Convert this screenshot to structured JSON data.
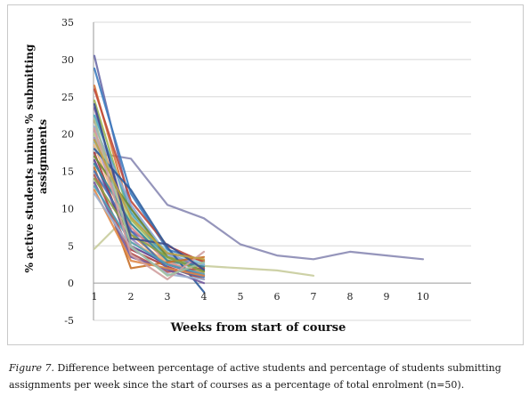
{
  "chart_data": {
    "type": "line",
    "title": "",
    "xlabel": "Weeks from start of course",
    "ylabel": "% active students minus % submitting assignments",
    "ylim": [
      -5,
      35
    ],
    "y_ticks": [
      "-5",
      "0",
      "5",
      "10",
      "15",
      "20",
      "25",
      "30",
      "35"
    ],
    "x_ticks": [
      "1",
      "2",
      "3",
      "4",
      "5",
      "6",
      "7",
      "8",
      "9",
      "10"
    ],
    "grid": "horizontal",
    "legend": "none",
    "series": [
      {
        "color": "#8a8ab4",
        "x": [
          1,
          2,
          3,
          4,
          5,
          6,
          7,
          8,
          9,
          10
        ],
        "y": [
          17.5,
          16.7,
          10.5,
          8.7,
          5.2,
          3.7,
          3.2,
          4.2,
          3.7,
          3.2
        ]
      },
      {
        "color": "#c8cc9c",
        "x": [
          1,
          2,
          3,
          4,
          5,
          6,
          7
        ],
        "y": [
          4.6,
          9.5,
          3.2,
          2.3,
          2.0,
          1.7,
          1.0
        ]
      },
      {
        "color": "#6a6aa8",
        "x": [
          1,
          2,
          3,
          4
        ],
        "y": [
          30.5,
          10.0,
          3.5,
          2.5
        ]
      },
      {
        "color": "#3c7cc0",
        "x": [
          1,
          2,
          3,
          4
        ],
        "y": [
          28.8,
          12.0,
          4.5,
          3.0
        ]
      },
      {
        "color": "#d9793a",
        "x": [
          1,
          2,
          3,
          4
        ],
        "y": [
          26.5,
          9.0,
          4.0,
          3.0
        ]
      },
      {
        "color": "#c04a3c",
        "x": [
          1,
          2,
          3,
          4
        ],
        "y": [
          26.0,
          11.0,
          5.0,
          2.8
        ]
      },
      {
        "color": "#9cb858",
        "x": [
          1,
          2,
          3,
          4
        ],
        "y": [
          24.5,
          8.5,
          3.5,
          2.2
        ]
      },
      {
        "color": "#7a5ca8",
        "x": [
          1,
          2,
          3,
          4
        ],
        "y": [
          23.5,
          7.0,
          4.0,
          2.0
        ]
      },
      {
        "color": "#4aa8c0",
        "x": [
          1,
          2,
          3,
          4
        ],
        "y": [
          22.5,
          9.5,
          3.0,
          1.8
        ]
      },
      {
        "color": "#e89a4c",
        "x": [
          1,
          2,
          3,
          4
        ],
        "y": [
          21.8,
          6.5,
          2.5,
          1.5
        ]
      },
      {
        "color": "#8aa8d8",
        "x": [
          1,
          2,
          3,
          4
        ],
        "y": [
          21.0,
          10.5,
          3.8,
          2.4
        ]
      },
      {
        "color": "#d88a88",
        "x": [
          1,
          2,
          3,
          4
        ],
        "y": [
          20.5,
          7.5,
          2.8,
          1.2
        ]
      },
      {
        "color": "#b8d088",
        "x": [
          1,
          2,
          3,
          4
        ],
        "y": [
          20.0,
          8.0,
          3.2,
          2.0
        ]
      },
      {
        "color": "#9c8ac8",
        "x": [
          1,
          2,
          3,
          4
        ],
        "y": [
          19.5,
          6.0,
          2.0,
          1.0
        ]
      },
      {
        "color": "#88c8d8",
        "x": [
          1,
          2,
          3,
          4
        ],
        "y": [
          19.0,
          9.0,
          4.2,
          2.6
        ]
      },
      {
        "color": "#f0b880",
        "x": [
          1,
          2,
          3,
          4
        ],
        "y": [
          18.5,
          5.5,
          3.0,
          2.0
        ]
      },
      {
        "color": "#2c5c9c",
        "x": [
          1,
          2,
          3,
          4
        ],
        "y": [
          18.0,
          12.5,
          4.8,
          -1.2
        ]
      },
      {
        "color": "#a83c3c",
        "x": [
          1,
          2,
          3,
          4
        ],
        "y": [
          17.5,
          4.5,
          2.2,
          0.5
        ]
      },
      {
        "color": "#6c8c34",
        "x": [
          1,
          2,
          3,
          4
        ],
        "y": [
          17.0,
          10.0,
          3.5,
          1.6
        ]
      },
      {
        "color": "#5c3c8c",
        "x": [
          1,
          2,
          3,
          4
        ],
        "y": [
          16.5,
          5.0,
          2.5,
          1.0
        ]
      },
      {
        "color": "#34889c",
        "x": [
          1,
          2,
          3,
          4
        ],
        "y": [
          16.0,
          8.0,
          3.0,
          2.2
        ]
      },
      {
        "color": "#c87028",
        "x": [
          1,
          2,
          3,
          4
        ],
        "y": [
          15.5,
          2.0,
          2.8,
          3.5
        ]
      },
      {
        "color": "#4870b0",
        "x": [
          1,
          2,
          3,
          4
        ],
        "y": [
          15.0,
          7.0,
          2.0,
          0.8
        ]
      },
      {
        "color": "#b05050",
        "x": [
          1,
          2,
          3,
          4
        ],
        "y": [
          14.5,
          4.0,
          1.5,
          2.0
        ]
      },
      {
        "color": "#88a048",
        "x": [
          1,
          2,
          3,
          4
        ],
        "y": [
          14.0,
          6.5,
          3.5,
          1.5
        ]
      },
      {
        "color": "#70589c",
        "x": [
          1,
          2,
          3,
          4
        ],
        "y": [
          13.5,
          3.5,
          1.8,
          0.0
        ]
      },
      {
        "color": "#50a0b8",
        "x": [
          1,
          2,
          3,
          4
        ],
        "y": [
          13.0,
          5.5,
          2.5,
          1.2
        ]
      },
      {
        "color": "#e08848",
        "x": [
          1,
          2,
          3,
          4
        ],
        "y": [
          12.5,
          3.0,
          2.0,
          1.0
        ]
      },
      {
        "color": "#9cb0d0",
        "x": [
          1,
          2,
          3,
          4
        ],
        "y": [
          12.0,
          4.8,
          1.2,
          0.5
        ]
      },
      {
        "color": "#d0a0a0",
        "x": [
          1,
          2,
          3,
          4
        ],
        "y": [
          20.8,
          3.8,
          0.5,
          4.2
        ]
      },
      {
        "color": "#a0c0a0",
        "x": [
          1,
          2,
          3,
          4
        ],
        "y": [
          22.0,
          5.0,
          1.0,
          2.8
        ]
      },
      {
        "color": "#3c4c8c",
        "x": [
          1,
          2,
          3,
          4
        ],
        "y": [
          24.0,
          6.0,
          5.2,
          1.8
        ]
      },
      {
        "color": "#c0a040",
        "x": [
          1,
          2,
          3,
          4
        ],
        "y": [
          19.2,
          8.8,
          4.0,
          3.2
        ]
      }
    ]
  },
  "caption": {
    "figure_label": "Figure 7.",
    "text": " Difference between percentage of active students and percentage of students submitting assignments per week since the start of courses as a percentage of total enrolment (n=50)."
  }
}
